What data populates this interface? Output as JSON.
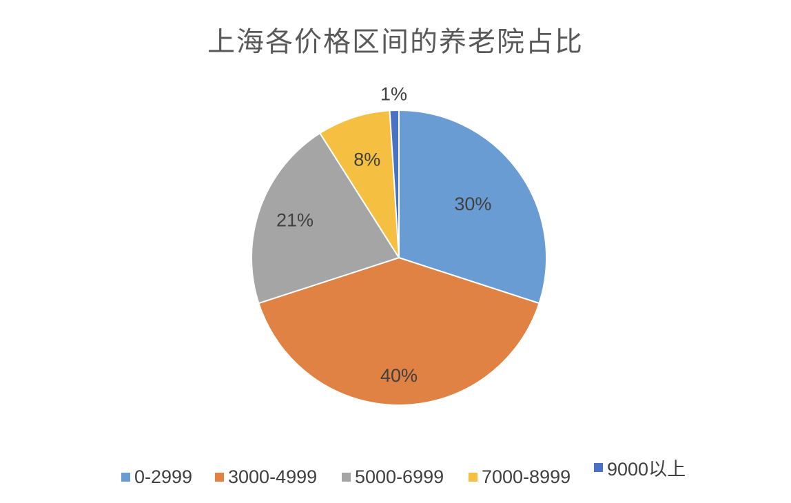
{
  "chart_data": {
    "type": "pie",
    "title": "上海各价格区间的养老院占比",
    "categories": [
      "0-2999",
      "3000-4999",
      "5000-6999",
      "7000-8999",
      "9000以上"
    ],
    "values": [
      30,
      40,
      21,
      8,
      1
    ],
    "labels": [
      "30%",
      "40%",
      "21%",
      "8%",
      "1%"
    ],
    "colors": [
      "#699CD2",
      "#DF8244",
      "#A5A5A5",
      "#F5BF41",
      "#4A72C4"
    ],
    "legend_position": "bottom",
    "start_angle": "top, clockwise"
  }
}
